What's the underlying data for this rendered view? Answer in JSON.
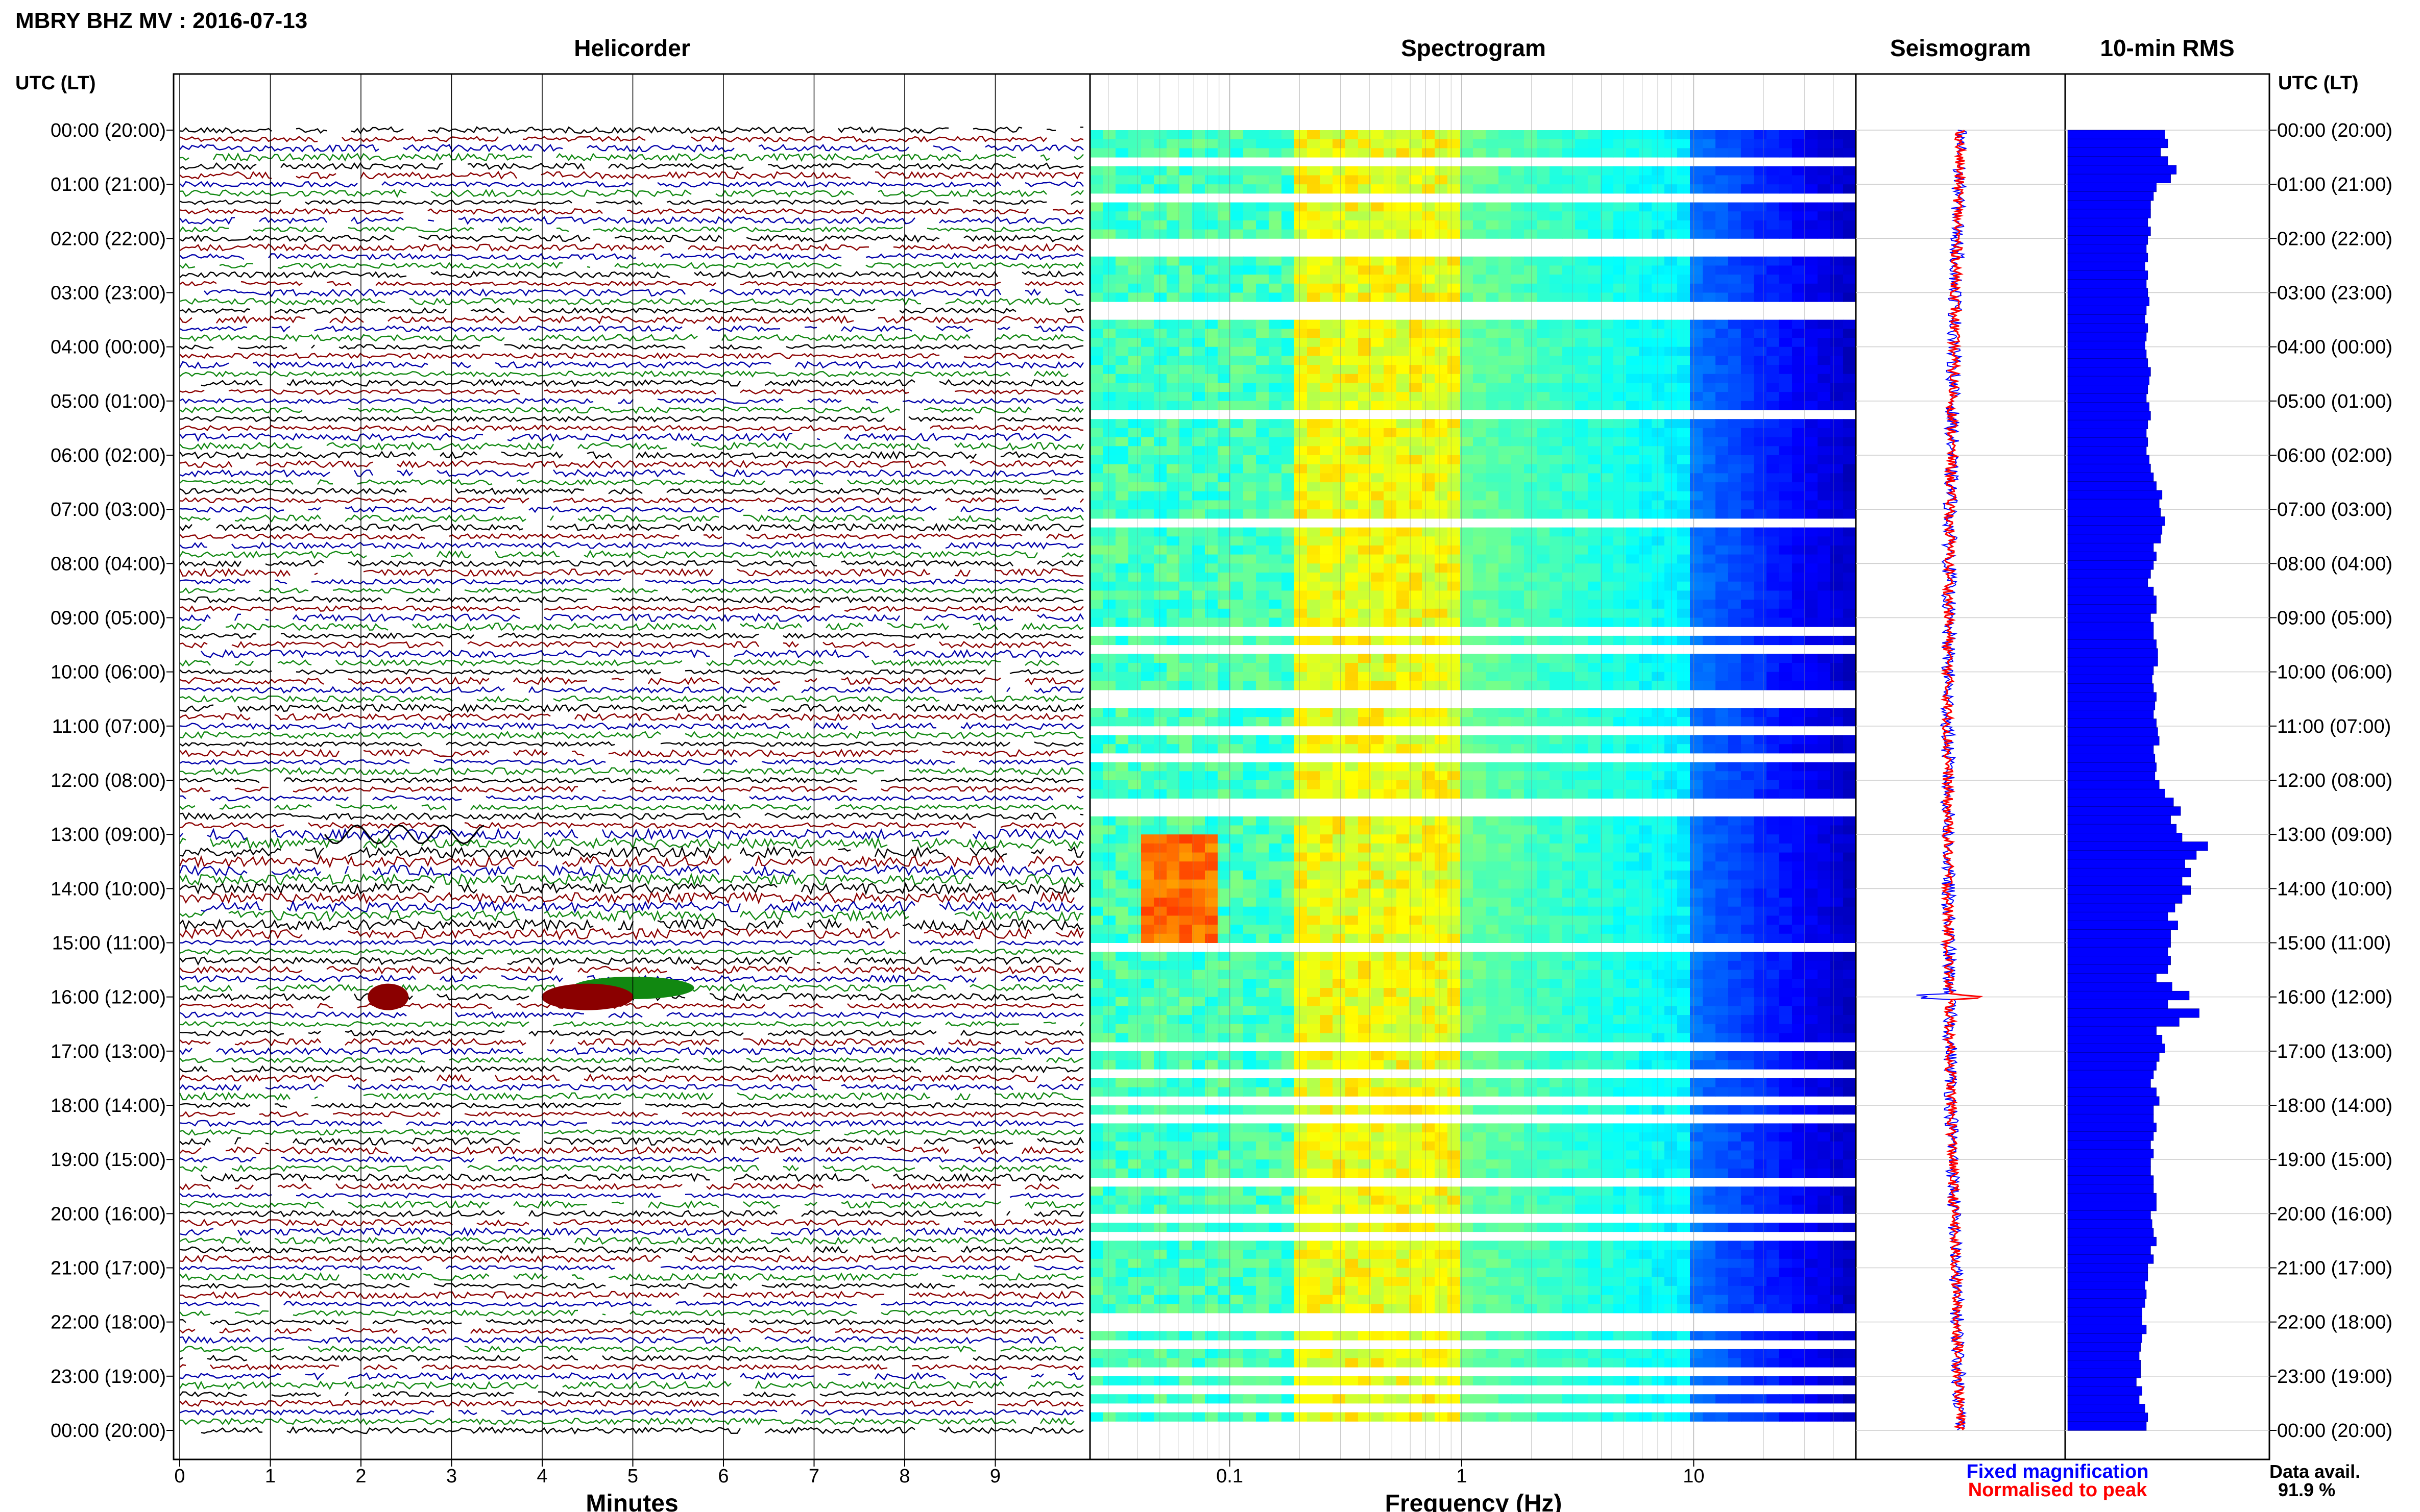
{
  "title": "MBRY BHZ MV : 2016-07-13",
  "panels": {
    "helicorder": "Helicorder",
    "spectrogram": "Spectrogram",
    "seismogram": "Seismogram",
    "rms": "10-min RMS"
  },
  "time_axis_label": "UTC (LT)",
  "xlabels": {
    "helicorder": "Minutes",
    "spectrogram": "Frequency (Hz)"
  },
  "legend": {
    "fixed": "Fixed magnification",
    "normalised": "Normalised to peak",
    "fixed_color": "#0000ff",
    "normalised_color": "#ff0000"
  },
  "data_availability": {
    "label": "Data avail.",
    "value": "91.9 %"
  },
  "colors": {
    "trace_cycle": [
      "#000000",
      "#8b0000",
      "#0000aa",
      "#118811"
    ],
    "rms_bar": "#0000ff",
    "seismo_fixed": "#0000ff",
    "seismo_norm": "#ff0000",
    "spectro_low": "#00008b",
    "spectro_high": "#ffff00"
  },
  "chart_data": [
    {
      "type": "line",
      "panel": "helicorder",
      "xlabel": "Minutes",
      "x_ticks": [
        "0",
        "1",
        "2",
        "3",
        "4",
        "5",
        "6",
        "7",
        "8",
        "9"
      ],
      "xlim": [
        0,
        10
      ],
      "y_ticks": [
        "00:00 (20:00)",
        "01:00 (21:00)",
        "02:00 (22:00)",
        "03:00 (23:00)",
        "04:00 (00:00)",
        "05:00 (01:00)",
        "06:00 (02:00)",
        "07:00 (03:00)",
        "08:00 (04:00)",
        "09:00 (05:00)",
        "10:00 (06:00)",
        "11:00 (07:00)",
        "12:00 (08:00)",
        "13:00 (09:00)",
        "14:00 (10:00)",
        "15:00 (11:00)",
        "16:00 (12:00)",
        "17:00 (13:00)",
        "18:00 (14:00)",
        "19:00 (15:00)",
        "20:00 (16:00)",
        "21:00 (17:00)",
        "22:00 (18:00)",
        "23:00 (19:00)",
        "00:00 (20:00)"
      ],
      "rows_per_hour": 6,
      "events": [
        {
          "time": "13:00",
          "minute": 1.6,
          "note": "low-frequency wiggles"
        },
        {
          "time": "15:50",
          "minute": 5.0
        },
        {
          "time": "16:00",
          "minute": 2.3
        },
        {
          "time": "16:00",
          "minute": 4.5
        }
      ]
    },
    {
      "type": "heatmap",
      "panel": "spectrogram",
      "xlabel": "Frequency (Hz)",
      "x_scale": "log",
      "xlim": [
        0.025,
        50
      ],
      "x_ticks": [
        "0.1",
        "1",
        "10"
      ],
      "gaps_hours": [
        0.5,
        1.15,
        1.95,
        2.2,
        3.1,
        3.4,
        5.1,
        7.1,
        9.1,
        9.55,
        10.3,
        10.55,
        11.0,
        11.5,
        12.3,
        12.45,
        15.0,
        16.9,
        17.3,
        17.8,
        18.2,
        19.3,
        20.0,
        20.4,
        21.8,
        22.0,
        22.4,
        22.8,
        23.1,
        23.5,
        23.8
      ],
      "energy_band_hz": [
        0.2,
        1.0
      ],
      "strong_low_freq_hours": [
        13,
        15
      ]
    },
    {
      "type": "line",
      "panel": "seismogram",
      "series": [
        {
          "name": "Fixed magnification"
        },
        {
          "name": "Normalised to peak"
        }
      ],
      "peak_hour": 16.0
    },
    {
      "type": "bar",
      "panel": "10-min RMS",
      "orientation": "horizontal",
      "bin_minutes": 10,
      "values": [
        0.68,
        0.7,
        0.65,
        0.7,
        0.76,
        0.72,
        0.62,
        0.6,
        0.58,
        0.58,
        0.56,
        0.58,
        0.56,
        0.55,
        0.56,
        0.54,
        0.56,
        0.55,
        0.56,
        0.57,
        0.55,
        0.54,
        0.56,
        0.55,
        0.54,
        0.55,
        0.56,
        0.58,
        0.57,
        0.56,
        0.55,
        0.57,
        0.58,
        0.56,
        0.55,
        0.56,
        0.55,
        0.57,
        0.58,
        0.6,
        0.62,
        0.66,
        0.64,
        0.65,
        0.68,
        0.66,
        0.65,
        0.6,
        0.62,
        0.6,
        0.58,
        0.56,
        0.6,
        0.62,
        0.62,
        0.58,
        0.6,
        0.6,
        0.62,
        0.63,
        0.63,
        0.6,
        0.59,
        0.6,
        0.62,
        0.61,
        0.6,
        0.62,
        0.63,
        0.64,
        0.6,
        0.61,
        0.62,
        0.61,
        0.64,
        0.68,
        0.74,
        0.79,
        0.72,
        0.76,
        0.8,
        0.98,
        0.9,
        0.82,
        0.86,
        0.8,
        0.86,
        0.8,
        0.75,
        0.7,
        0.77,
        0.72,
        0.72,
        0.7,
        0.72,
        0.7,
        0.62,
        0.73,
        0.85,
        0.7,
        0.92,
        0.78,
        0.62,
        0.66,
        0.68,
        0.64,
        0.62,
        0.6,
        0.58,
        0.62,
        0.64,
        0.6,
        0.6,
        0.62,
        0.6,
        0.58,
        0.6,
        0.58,
        0.58,
        0.6,
        0.6,
        0.62,
        0.62,
        0.58,
        0.59,
        0.6,
        0.62,
        0.58,
        0.6,
        0.56,
        0.56,
        0.54,
        0.55,
        0.54,
        0.52,
        0.52,
        0.55,
        0.52,
        0.51,
        0.5,
        0.51,
        0.51,
        0.48,
        0.52,
        0.5,
        0.54,
        0.56,
        0.55
      ]
    }
  ]
}
